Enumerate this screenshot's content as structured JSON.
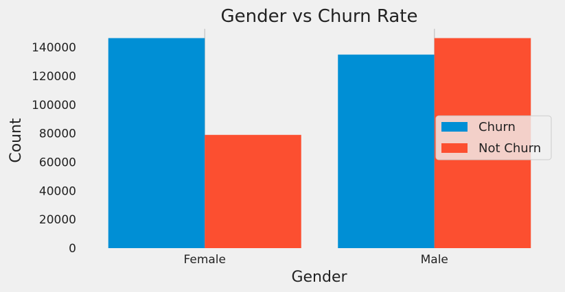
{
  "chart_data": {
    "type": "bar",
    "title": "Gender vs Churn Rate",
    "xlabel": "Gender",
    "ylabel": "Count",
    "categories": [
      "Female",
      "Male"
    ],
    "series": [
      {
        "name": "Churn",
        "values": [
          146500,
          135000
        ],
        "color": "#008fd5"
      },
      {
        "name": "Not Churn",
        "values": [
          79000,
          146500
        ],
        "color": "#fc4f30"
      }
    ],
    "ylim": [
      0,
      153000
    ],
    "yticks": [
      0,
      20000,
      40000,
      60000,
      80000,
      100000,
      120000,
      140000
    ],
    "grid": false,
    "legend": "center-right"
  }
}
